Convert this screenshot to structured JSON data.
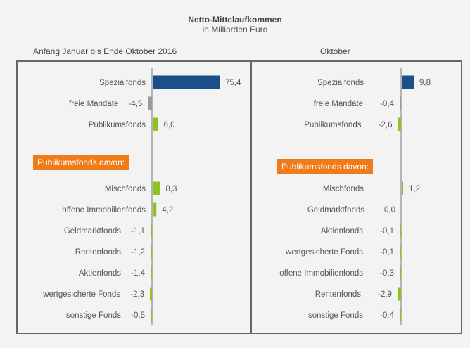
{
  "header": {
    "title": "Netto-Mittelaufkommen",
    "subtitle": "in Milliarden  Euro",
    "left_period": "Anfang Januar  bis Ende Oktober 2016",
    "right_period": "Oktober"
  },
  "colors": {
    "spezialfonds": "#1a4f8a",
    "publikumsfonds": "#8dc21f",
    "mandate": "#9a9a9a",
    "badge": "#f07b1a"
  },
  "chart_data": [
    {
      "type": "bar",
      "orientation": "horizontal",
      "title": "Anfang Januar  bis Ende Oktober 2016",
      "unit": "Mrd. Euro",
      "badge_label": "Publikumsfonds davon:",
      "categories": [
        "Spezialfonds",
        "freie Mandate",
        "Publikumsfonds",
        "Mischfonds",
        "offene Immobilienfonds",
        "Geldmarktfonds",
        "Rentenfonds",
        "Aktienfonds",
        "wertgesicherte Fonds",
        "sonstige Fonds"
      ],
      "values": [
        75.4,
        -4.5,
        6.0,
        8.3,
        4.2,
        -1.1,
        -1.2,
        -1.4,
        -2.3,
        -0.5
      ],
      "labels": [
        "75,4",
        "-4,5",
        "6,0",
        "8,3",
        "4,2",
        "-1,1",
        "-1,2",
        "-1,4",
        "-2,3",
        "-0,5"
      ],
      "groups": [
        "spezialfonds",
        "mandate",
        "publikumsfonds",
        "publikumsfonds",
        "publikumsfonds",
        "publikumsfonds",
        "publikumsfonds",
        "publikumsfonds",
        "publikumsfonds",
        "publikumsfonds"
      ]
    },
    {
      "type": "bar",
      "orientation": "horizontal",
      "title": "Oktober",
      "unit": "Mrd. Euro",
      "badge_label": "Publikumsfonds davon:",
      "categories": [
        "Spezialfonds",
        "freie Mandate",
        "Publikumsfonds",
        "Mischfonds",
        "Geldmarktfonds",
        "Aktienfonds",
        "wertgesicherte Fonds",
        "offene Immobilienfonds",
        "Rentenfonds",
        "sonstige Fonds"
      ],
      "values": [
        9.8,
        -0.4,
        -2.6,
        1.2,
        0.0,
        -0.1,
        -0.1,
        -0.3,
        -2.9,
        -0.4
      ],
      "labels": [
        "9,8",
        "-0,4",
        "-2,6",
        "1,2",
        "0,0",
        "-0,1",
        "-0,1",
        "-0,3",
        "-2,9",
        "-0,4"
      ],
      "groups": [
        "spezialfonds",
        "mandate",
        "publikumsfonds",
        "publikumsfonds",
        "publikumsfonds",
        "publikumsfonds",
        "publikumsfonds",
        "publikumsfonds",
        "publikumsfonds",
        "publikumsfonds"
      ]
    }
  ]
}
